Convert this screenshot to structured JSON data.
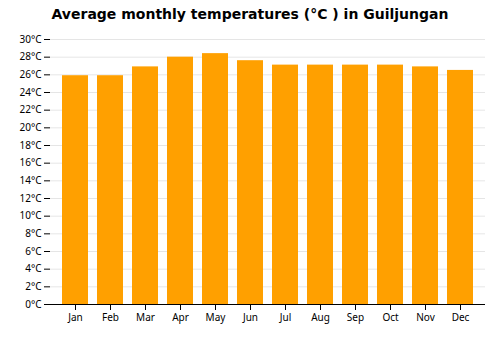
{
  "chart_data": {
    "type": "bar",
    "title": "Average monthly temperatures (°C ) in Guiljungan",
    "categories": [
      "Jan",
      "Feb",
      "Mar",
      "Apr",
      "May",
      "Jun",
      "Jul",
      "Aug",
      "Sep",
      "Oct",
      "Nov",
      "Dec"
    ],
    "values": [
      25.9,
      25.9,
      26.9,
      28.0,
      28.4,
      27.6,
      27.1,
      27.1,
      27.1,
      27.1,
      26.9,
      26.5
    ],
    "color": "#FFA000",
    "ylim": [
      0,
      30
    ],
    "yticks": [
      {
        "value": 0,
        "label": "0°C"
      },
      {
        "value": 2,
        "label": "2°C"
      },
      {
        "value": 4,
        "label": "4°C"
      },
      {
        "value": 6,
        "label": "6°C"
      },
      {
        "value": 8,
        "label": "8°C"
      },
      {
        "value": 10,
        "label": "10°C"
      },
      {
        "value": 12,
        "label": "12°C"
      },
      {
        "value": 14,
        "label": "14°C"
      },
      {
        "value": 16,
        "label": "16°C"
      },
      {
        "value": 18,
        "label": "18°C"
      },
      {
        "value": 20,
        "label": "20°C"
      },
      {
        "value": 22,
        "label": "22°C"
      },
      {
        "value": 24,
        "label": "24°C"
      },
      {
        "value": 26,
        "label": "26°C"
      },
      {
        "value": 28,
        "label": "28°C"
      },
      {
        "value": 30,
        "label": "30°C"
      }
    ],
    "grid": true
  }
}
